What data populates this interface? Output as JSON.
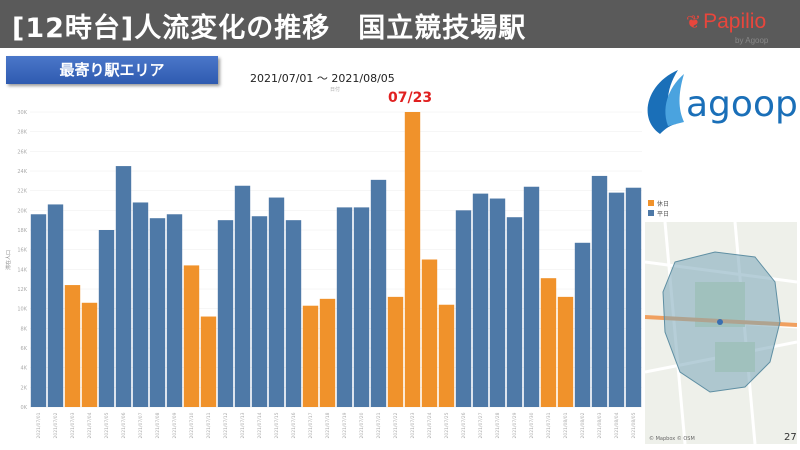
{
  "header": {
    "title": "[12時台]人流変化の推移　国立競技場駅",
    "brand": "Papilio",
    "brand_sub": "by Agoop"
  },
  "badge": "最寄り駅エリア",
  "date_range": "2021/07/01 〜 2021/08/05",
  "axis_hint": "日付",
  "highlight_label": "07/23",
  "logo": "agoop",
  "page_number": "27",
  "map_credit": "© Mapbox © OSM",
  "colors": {
    "holiday": "#f0922b",
    "weekday": "#4e79a7",
    "highlight": "#e02020"
  },
  "chart_data": {
    "type": "bar",
    "ylabel": "滞在人口",
    "ylim": [
      0,
      30000
    ],
    "yticks": [
      "0K",
      "2K",
      "4K",
      "6K",
      "8K",
      "10K",
      "12K",
      "14K",
      "16K",
      "18K",
      "20K",
      "22K",
      "24K",
      "26K",
      "28K",
      "30K"
    ],
    "legend": [
      {
        "name": "休日",
        "color": "#f0922b"
      },
      {
        "name": "平日",
        "color": "#4e79a7"
      }
    ],
    "categories": [
      "2021/07/01",
      "2021/07/02",
      "2021/07/03",
      "2021/07/04",
      "2021/07/05",
      "2021/07/06",
      "2021/07/07",
      "2021/07/08",
      "2021/07/09",
      "2021/07/10",
      "2021/07/11",
      "2021/07/12",
      "2021/07/13",
      "2021/07/14",
      "2021/07/15",
      "2021/07/16",
      "2021/07/17",
      "2021/07/18",
      "2021/07/19",
      "2021/07/20",
      "2021/07/21",
      "2021/07/22",
      "2021/07/23",
      "2021/07/24",
      "2021/07/25",
      "2021/07/26",
      "2021/07/27",
      "2021/07/28",
      "2021/07/29",
      "2021/07/30",
      "2021/07/31",
      "2021/08/01",
      "2021/08/02",
      "2021/08/03",
      "2021/08/04",
      "2021/08/05"
    ],
    "values": [
      19600,
      20600,
      12400,
      10600,
      18000,
      24500,
      20800,
      19200,
      19600,
      14400,
      9200,
      19000,
      22500,
      19400,
      21300,
      19000,
      10300,
      11000,
      20300,
      20300,
      23100,
      11200,
      30000,
      15000,
      10400,
      20000,
      21700,
      21200,
      19300,
      22400,
      13100,
      11200,
      16700,
      23500,
      21800,
      22300
    ],
    "holiday": [
      0,
      0,
      1,
      1,
      0,
      0,
      0,
      0,
      0,
      1,
      1,
      0,
      0,
      0,
      0,
      0,
      1,
      1,
      0,
      0,
      0,
      1,
      1,
      1,
      1,
      0,
      0,
      0,
      0,
      0,
      1,
      1,
      0,
      0,
      0,
      0
    ]
  }
}
